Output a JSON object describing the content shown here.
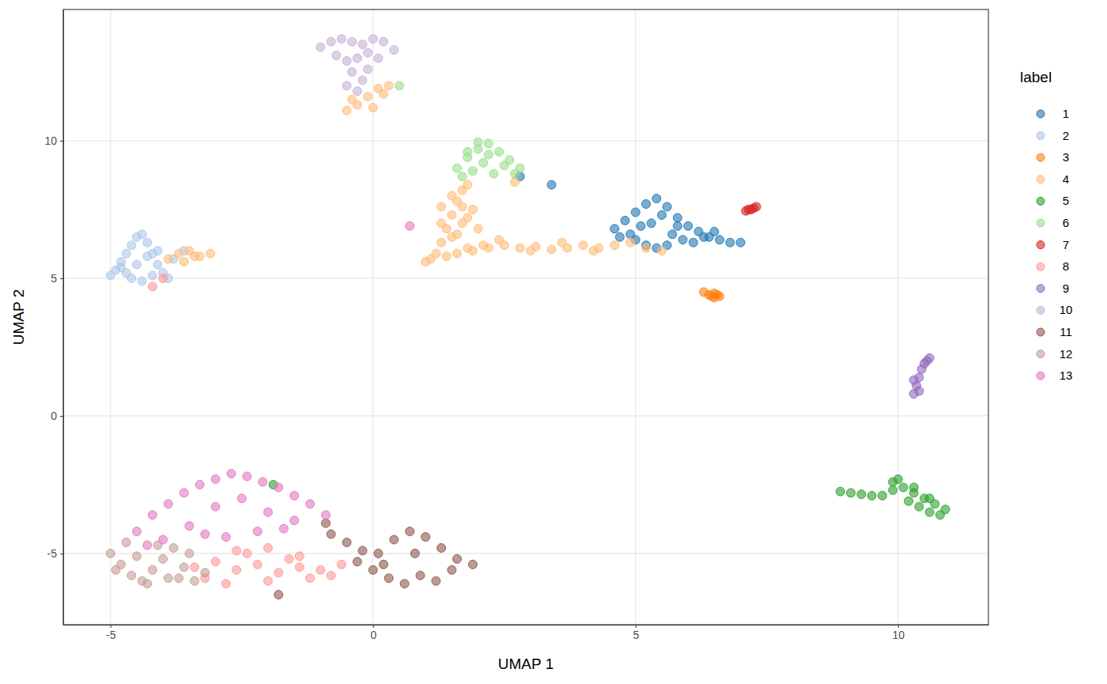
{
  "chart_data": {
    "type": "scatter",
    "x_label": "UMAP 1",
    "y_label": "UMAP 2",
    "legend_title": "label",
    "legend": "right",
    "grid": true,
    "marker": "circle",
    "xlim": [
      -5.9,
      11.72
    ],
    "ylim": [
      -7.59,
      14.77
    ],
    "xticks": [
      -5,
      0,
      5,
      10
    ],
    "yticks": [
      -5,
      0,
      5,
      10
    ],
    "series": [
      {
        "name": "1",
        "color": "#1f77b4",
        "x": [
          4.6,
          4.8,
          5.0,
          5.2,
          5.4,
          5.6,
          5.8,
          6.0,
          6.2,
          6.4,
          6.6,
          6.8,
          7.0,
          5.0,
          5.2,
          5.4,
          5.6,
          5.3,
          5.5,
          5.1,
          4.9,
          5.7,
          5.9,
          6.1,
          6.3,
          4.7,
          5.8,
          6.5,
          3.4,
          2.8
        ],
        "values": [
          6.8,
          7.1,
          7.4,
          7.7,
          7.9,
          7.6,
          7.2,
          6.9,
          6.7,
          6.5,
          6.4,
          6.3,
          6.3,
          6.4,
          6.2,
          6.1,
          6.2,
          7.0,
          7.3,
          6.9,
          6.6,
          6.6,
          6.4,
          6.3,
          6.5,
          6.5,
          6.9,
          6.7,
          8.4,
          8.7
        ]
      },
      {
        "name": "2",
        "color": "#aec7e8",
        "x": [
          -5.0,
          -4.9,
          -4.8,
          -4.7,
          -4.6,
          -4.5,
          -4.4,
          -4.3,
          -4.2,
          -4.1,
          -4.0,
          -3.9,
          -4.6,
          -4.4,
          -4.2,
          -4.5,
          -4.3,
          -4.7,
          -4.1,
          -4.8,
          -3.8,
          -3.6
        ],
        "values": [
          5.1,
          5.3,
          5.6,
          5.9,
          6.2,
          6.5,
          6.6,
          6.3,
          5.9,
          5.5,
          5.2,
          5.0,
          5.0,
          4.9,
          5.1,
          5.5,
          5.8,
          5.2,
          6.0,
          5.4,
          5.7,
          6.0
        ]
      },
      {
        "name": "3",
        "color": "#ff7f0e",
        "x": [
          6.4,
          6.45,
          6.5,
          6.55,
          6.6,
          6.3,
          6.5
        ],
        "values": [
          4.4,
          4.35,
          4.3,
          4.4,
          4.35,
          4.5,
          4.45
        ]
      },
      {
        "name": "4",
        "color": "#ffbb78",
        "x": [
          1.1,
          1.2,
          1.3,
          1.4,
          1.5,
          1.6,
          1.7,
          1.8,
          1.9,
          2.0,
          2.1,
          1.3,
          1.5,
          1.7,
          1.9,
          1.4,
          1.6,
          1.8,
          1.5,
          1.7,
          1.6,
          1.8,
          2.2,
          2.5,
          2.8,
          3.1,
          3.4,
          3.7,
          4.0,
          4.3,
          4.6,
          4.9,
          5.2,
          5.5,
          2.4,
          3.0,
          3.6,
          4.2,
          -0.5,
          -0.3,
          -0.1,
          0.1,
          0.3,
          -0.4,
          0.0,
          0.2,
          -3.9,
          -3.7,
          -3.5,
          -3.3,
          -3.1,
          -3.6,
          -3.4,
          2.7,
          1.0,
          1.3
        ],
        "values": [
          5.7,
          5.9,
          6.3,
          6.8,
          7.3,
          7.8,
          8.2,
          8.4,
          7.5,
          6.8,
          6.2,
          7.0,
          6.5,
          7.0,
          6.0,
          5.8,
          5.9,
          6.1,
          8.0,
          7.6,
          6.6,
          7.2,
          6.1,
          6.2,
          6.1,
          6.15,
          6.05,
          6.1,
          6.2,
          6.1,
          6.2,
          6.3,
          6.1,
          6.0,
          6.4,
          6.0,
          6.3,
          6.0,
          11.1,
          11.3,
          11.6,
          11.9,
          12.0,
          11.5,
          11.2,
          11.7,
          5.7,
          5.9,
          6.0,
          5.8,
          5.9,
          5.6,
          5.8,
          8.5,
          5.6,
          7.6
        ]
      },
      {
        "name": "5",
        "color": "#2ca02c",
        "x": [
          8.9,
          9.1,
          9.3,
          9.5,
          9.7,
          9.9,
          10.1,
          10.3,
          10.5,
          10.7,
          10.9,
          10.0,
          10.2,
          10.4,
          10.6,
          10.8,
          9.9,
          10.3,
          10.6,
          -1.9
        ],
        "values": [
          -2.75,
          -2.8,
          -2.85,
          -2.9,
          -2.9,
          -2.7,
          -2.6,
          -2.8,
          -3.0,
          -3.2,
          -3.4,
          -2.3,
          -3.1,
          -3.3,
          -3.5,
          -3.6,
          -2.4,
          -2.6,
          -3.0,
          -2.5
        ]
      },
      {
        "name": "6",
        "color": "#98df8a",
        "x": [
          1.6,
          1.8,
          2.0,
          2.2,
          2.4,
          2.6,
          2.8,
          1.7,
          1.9,
          2.1,
          2.3,
          2.5,
          2.0,
          2.2,
          1.8,
          2.7,
          0.5
        ],
        "values": [
          9.0,
          9.4,
          9.7,
          9.9,
          9.6,
          9.3,
          9.0,
          8.7,
          8.9,
          9.2,
          8.8,
          9.1,
          9.95,
          9.5,
          9.6,
          8.8,
          12.0
        ]
      },
      {
        "name": "7",
        "color": "#d62728",
        "x": [
          7.1,
          7.2,
          7.25,
          7.3,
          7.15
        ],
        "values": [
          7.45,
          7.5,
          7.55,
          7.6,
          7.5
        ]
      },
      {
        "name": "8",
        "color": "#ff9896",
        "x": [
          -3.4,
          -3.0,
          -2.6,
          -2.2,
          -1.8,
          -1.4,
          -1.0,
          -0.6,
          -3.2,
          -2.8,
          -2.4,
          -2.0,
          -1.6,
          -1.2,
          -0.8,
          -2.6,
          -2.0,
          -1.4,
          -4.0,
          -4.2
        ],
        "values": [
          -5.5,
          -5.3,
          -5.6,
          -5.4,
          -5.7,
          -5.5,
          -5.6,
          -5.4,
          -5.9,
          -6.1,
          -5.0,
          -6.0,
          -5.2,
          -5.9,
          -5.8,
          -4.9,
          -4.8,
          -5.1,
          5.0,
          4.7
        ]
      },
      {
        "name": "9",
        "color": "#9467bd",
        "x": [
          10.3,
          10.35,
          10.4,
          10.45,
          10.5,
          10.55,
          10.6,
          10.4,
          10.3
        ],
        "values": [
          0.8,
          1.1,
          1.4,
          1.7,
          1.9,
          2.0,
          2.1,
          0.9,
          1.3
        ]
      },
      {
        "name": "10",
        "color": "#c5b0d5",
        "x": [
          -1.0,
          -0.8,
          -0.6,
          -0.4,
          -0.2,
          0.0,
          0.2,
          0.4,
          -0.7,
          -0.5,
          -0.3,
          -0.1,
          0.1,
          -0.4,
          -0.2,
          -0.3,
          -0.5,
          -0.1
        ],
        "values": [
          13.4,
          13.6,
          13.7,
          13.6,
          13.5,
          13.7,
          13.6,
          13.3,
          13.1,
          12.9,
          13.0,
          13.2,
          13.0,
          12.5,
          12.2,
          11.8,
          12.0,
          12.6
        ]
      },
      {
        "name": "11",
        "color": "#8c564b",
        "x": [
          -0.8,
          -0.5,
          -0.2,
          0.1,
          0.4,
          0.7,
          1.0,
          1.3,
          1.6,
          1.9,
          0.0,
          0.3,
          0.6,
          0.9,
          1.2,
          1.5,
          -0.3,
          0.2,
          0.8,
          -0.9,
          -1.8
        ],
        "values": [
          -4.3,
          -4.6,
          -4.9,
          -5.0,
          -4.5,
          -4.2,
          -4.4,
          -4.8,
          -5.2,
          -5.4,
          -5.6,
          -5.9,
          -6.1,
          -5.8,
          -6.0,
          -5.6,
          -5.3,
          -5.4,
          -5.0,
          -3.9,
          -6.5
        ]
      },
      {
        "name": "12",
        "color": "#c49c94",
        "x": [
          -5.0,
          -4.8,
          -4.6,
          -4.4,
          -4.2,
          -4.0,
          -3.8,
          -3.6,
          -3.4,
          -4.9,
          -4.5,
          -4.1,
          -3.7,
          -4.7,
          -4.3,
          -3.9,
          -3.5,
          -3.2
        ],
        "values": [
          -5.0,
          -5.4,
          -5.8,
          -6.0,
          -5.6,
          -5.2,
          -4.8,
          -5.5,
          -6.0,
          -5.6,
          -5.1,
          -4.7,
          -5.9,
          -4.6,
          -6.1,
          -5.9,
          -5.0,
          -5.7
        ]
      },
      {
        "name": "13",
        "color": "#e377c2",
        "x": [
          -4.5,
          -4.2,
          -3.9,
          -3.6,
          -3.3,
          -3.0,
          -2.7,
          -2.4,
          -2.1,
          -1.8,
          -1.5,
          -1.2,
          -0.9,
          -4.0,
          -3.5,
          -3.0,
          -2.5,
          -2.0,
          -1.5,
          -3.2,
          -2.8,
          -2.2,
          -1.7,
          -4.3,
          0.7
        ],
        "values": [
          -4.2,
          -3.6,
          -3.2,
          -2.8,
          -2.5,
          -2.3,
          -2.1,
          -2.2,
          -2.4,
          -2.6,
          -2.9,
          -3.2,
          -3.6,
          -4.5,
          -4.0,
          -3.3,
          -3.0,
          -3.5,
          -3.8,
          -4.3,
          -4.4,
          -4.2,
          -4.1,
          -4.7,
          6.9
        ]
      }
    ]
  }
}
